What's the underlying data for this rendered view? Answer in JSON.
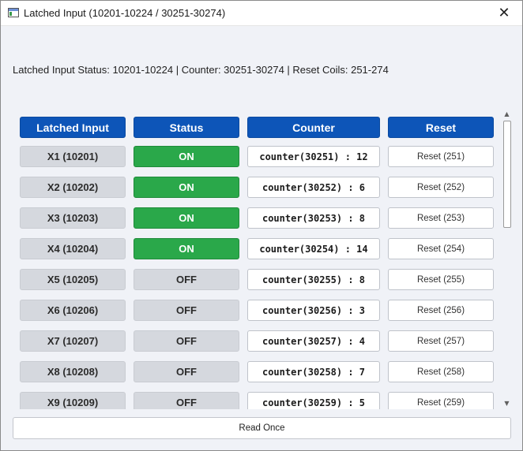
{
  "window": {
    "title": "Latched Input (10201-10224 / 30251-30274)",
    "close_glyph": "✕"
  },
  "status_line": "Latched Input Status: 10201-10224 | Counter: 30251-30274 | Reset Coils: 251-274",
  "table": {
    "headers": {
      "input": "Latched Input",
      "status": "Status",
      "counter": "Counter",
      "reset": "Reset"
    },
    "rows": [
      {
        "input": "X1 (10201)",
        "status": "ON",
        "counter": "counter(30251) : 12",
        "reset": "Reset (251)"
      },
      {
        "input": "X2 (10202)",
        "status": "ON",
        "counter": "counter(30252) : 6",
        "reset": "Reset (252)"
      },
      {
        "input": "X3 (10203)",
        "status": "ON",
        "counter": "counter(30253) : 8",
        "reset": "Reset (253)"
      },
      {
        "input": "X4 (10204)",
        "status": "ON",
        "counter": "counter(30254) : 14",
        "reset": "Reset (254)"
      },
      {
        "input": "X5 (10205)",
        "status": "OFF",
        "counter": "counter(30255) : 8",
        "reset": "Reset (255)"
      },
      {
        "input": "X6 (10206)",
        "status": "OFF",
        "counter": "counter(30256) : 3",
        "reset": "Reset (256)"
      },
      {
        "input": "X7 (10207)",
        "status": "OFF",
        "counter": "counter(30257) : 4",
        "reset": "Reset (257)"
      },
      {
        "input": "X8 (10208)",
        "status": "OFF",
        "counter": "counter(30258) : 7",
        "reset": "Reset (258)"
      },
      {
        "input": "X9 (10209)",
        "status": "OFF",
        "counter": "counter(30259) : 5",
        "reset": "Reset (259)"
      }
    ]
  },
  "scrollbar": {
    "up_glyph": "▲",
    "down_glyph": "▼"
  },
  "footer": {
    "read_once_label": "Read Once"
  },
  "colors": {
    "header_blue": "#0d55b8",
    "on_green": "#2aa84a",
    "off_gray": "#d5d8de"
  },
  "icons": {
    "app": "window-app-icon",
    "close": "close-icon",
    "scroll_up": "scroll-up-arrow-icon",
    "scroll_down": "scroll-down-arrow-icon"
  }
}
